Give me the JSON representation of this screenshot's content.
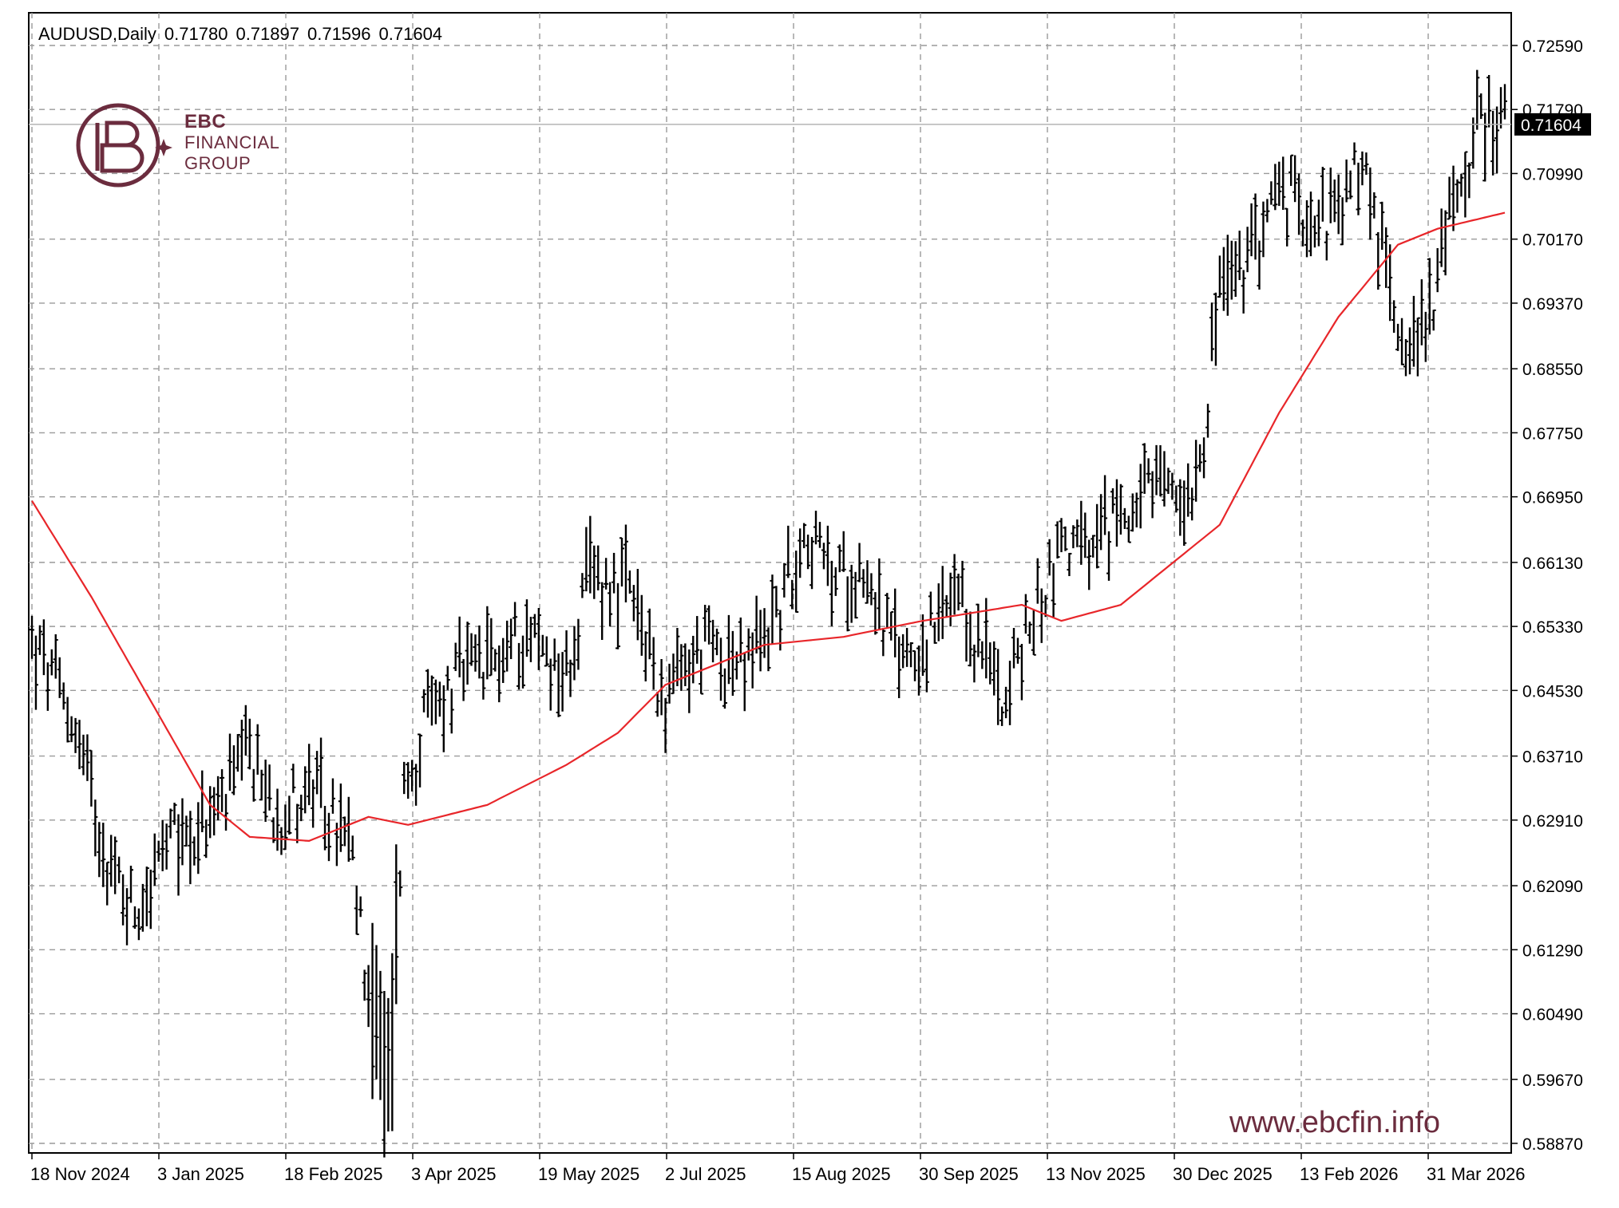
{
  "header": {
    "symbol": "AUDUSD,Daily",
    "open": "0.71780",
    "high": "0.71897",
    "low": "0.71596",
    "close": "0.71604"
  },
  "logo": {
    "line1": "EBC",
    "line2": "FINANCIAL",
    "line3": "GROUP"
  },
  "website": "www.ebcfin.info",
  "current_price_label": "0.71604",
  "colors": {
    "bars": "#000000",
    "moving_average": "#e8262a",
    "grid": "#9a9a9a",
    "brand": "#6b2c3e"
  },
  "chart_data": {
    "type": "ohlc",
    "title": "AUDUSD,Daily",
    "y_ticks": [
      "0.72590",
      "0.71790",
      "0.70990",
      "0.70170",
      "0.69370",
      "0.68550",
      "0.67750",
      "0.66950",
      "0.66130",
      "0.65330",
      "0.64530",
      "0.63710",
      "0.62910",
      "0.62090",
      "0.61290",
      "0.60490",
      "0.59670",
      "0.58870"
    ],
    "x_ticks": [
      "18 Nov 2024",
      "3 Jan 2025",
      "18 Feb 2025",
      "3 Apr 2025",
      "19 May 2025",
      "2 Jul 2025",
      "15 Aug 2025",
      "30 Sep 2025",
      "13 Nov 2025",
      "30 Dec 2025",
      "13 Feb 2026",
      "31 Mar 2026"
    ],
    "ylim": [
      0.5887,
      0.7259
    ],
    "grid": true,
    "price_anchors": [
      [
        0,
        0.651
      ],
      [
        10,
        0.642
      ],
      [
        20,
        0.623
      ],
      [
        26,
        0.618
      ],
      [
        35,
        0.626
      ],
      [
        45,
        0.629
      ],
      [
        55,
        0.637
      ],
      [
        62,
        0.63
      ],
      [
        70,
        0.633
      ],
      [
        80,
        0.626
      ],
      [
        86,
        0.605
      ],
      [
        90,
        0.596
      ],
      [
        94,
        0.633
      ],
      [
        100,
        0.642
      ],
      [
        108,
        0.647
      ],
      [
        115,
        0.648
      ],
      [
        125,
        0.653
      ],
      [
        135,
        0.647
      ],
      [
        141,
        0.66
      ],
      [
        150,
        0.658
      ],
      [
        160,
        0.644
      ],
      [
        170,
        0.651
      ],
      [
        180,
        0.648
      ],
      [
        190,
        0.657
      ],
      [
        195,
        0.666
      ],
      [
        202,
        0.659
      ],
      [
        210,
        0.661
      ],
      [
        218,
        0.65
      ],
      [
        226,
        0.651
      ],
      [
        233,
        0.656
      ],
      [
        240,
        0.65
      ],
      [
        246,
        0.645
      ],
      [
        252,
        0.653
      ],
      [
        260,
        0.664
      ],
      [
        268,
        0.662
      ],
      [
        275,
        0.668
      ],
      [
        285,
        0.67
      ],
      [
        292,
        0.67
      ],
      [
        296,
        0.678
      ],
      [
        300,
        0.696
      ],
      [
        307,
        0.698
      ],
      [
        313,
        0.707
      ],
      [
        322,
        0.706
      ],
      [
        330,
        0.704
      ],
      [
        336,
        0.712
      ],
      [
        340,
        0.702
      ],
      [
        345,
        0.692
      ],
      [
        349,
        0.688
      ],
      [
        354,
        0.695
      ],
      [
        360,
        0.708
      ],
      [
        366,
        0.717
      ],
      [
        372,
        0.716
      ]
    ],
    "moving_average_anchors": [
      [
        0,
        0.669
      ],
      [
        15,
        0.657
      ],
      [
        30,
        0.644
      ],
      [
        45,
        0.631
      ],
      [
        55,
        0.627
      ],
      [
        70,
        0.6265
      ],
      [
        85,
        0.6295
      ],
      [
        95,
        0.6285
      ],
      [
        115,
        0.631
      ],
      [
        135,
        0.636
      ],
      [
        148,
        0.64
      ],
      [
        160,
        0.646
      ],
      [
        185,
        0.651
      ],
      [
        205,
        0.652
      ],
      [
        225,
        0.654
      ],
      [
        250,
        0.656
      ],
      [
        260,
        0.654
      ],
      [
        275,
        0.656
      ],
      [
        290,
        0.662
      ],
      [
        300,
        0.666
      ],
      [
        315,
        0.68
      ],
      [
        330,
        0.692
      ],
      [
        345,
        0.701
      ],
      [
        355,
        0.703
      ],
      [
        372,
        0.705
      ]
    ],
    "bar_count": 373
  }
}
